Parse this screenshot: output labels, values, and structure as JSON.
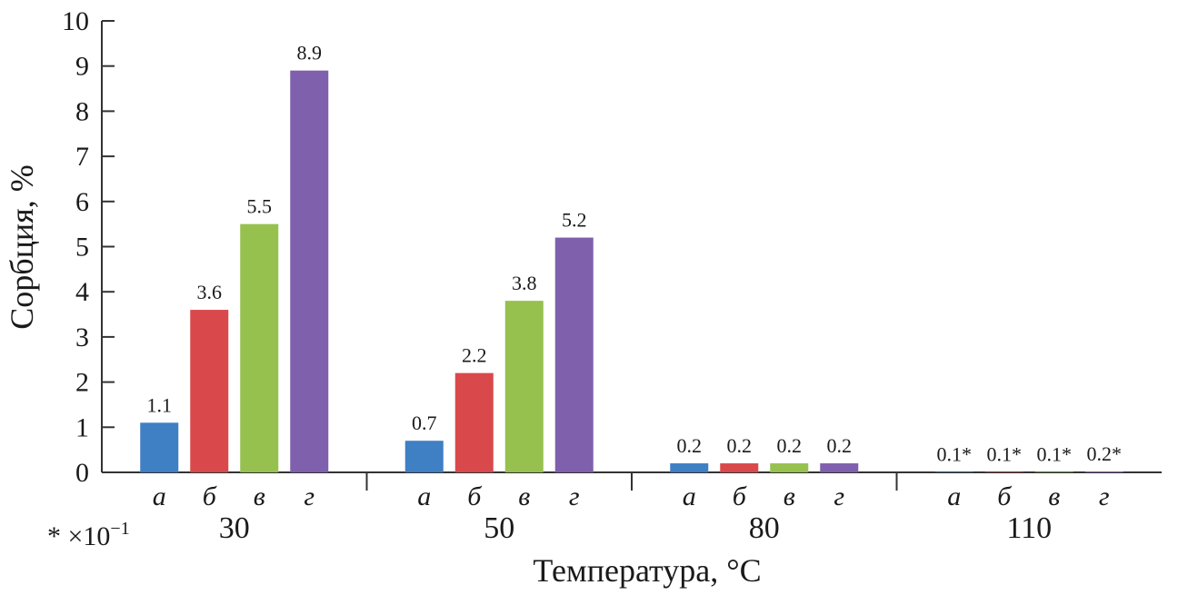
{
  "chart_data": {
    "type": "bar",
    "title": "",
    "ylabel": "Сорбция, %",
    "xlabel": "Температура, °C",
    "ylim": [
      0,
      10
    ],
    "yticks": [
      0,
      1,
      2,
      3,
      4,
      5,
      6,
      7,
      8,
      9,
      10
    ],
    "groups": [
      "30",
      "50",
      "80",
      "110"
    ],
    "subcategories": [
      "а",
      "б",
      "в",
      "г"
    ],
    "colors": [
      "#3f7fc4",
      "#d9494b",
      "#96c14f",
      "#7e60ad"
    ],
    "values": [
      [
        1.1,
        3.6,
        5.5,
        8.9
      ],
      [
        0.7,
        2.2,
        3.8,
        5.2
      ],
      [
        0.2,
        0.2,
        0.2,
        0.2
      ],
      [
        0.01,
        0.01,
        0.01,
        0.02
      ]
    ],
    "data_labels": [
      [
        "1.1",
        "3.6",
        "5.5",
        "8.9"
      ],
      [
        "0.7",
        "2.2",
        "3.8",
        "5.2"
      ],
      [
        "0.2",
        "0.2",
        "0.2",
        "0.2"
      ],
      [
        "0.1*",
        "0.1*",
        "0.1*",
        "0.2*"
      ]
    ],
    "footnote": "* ×10",
    "footnote_exp": "−1",
    "grid": false,
    "legend": "none"
  }
}
